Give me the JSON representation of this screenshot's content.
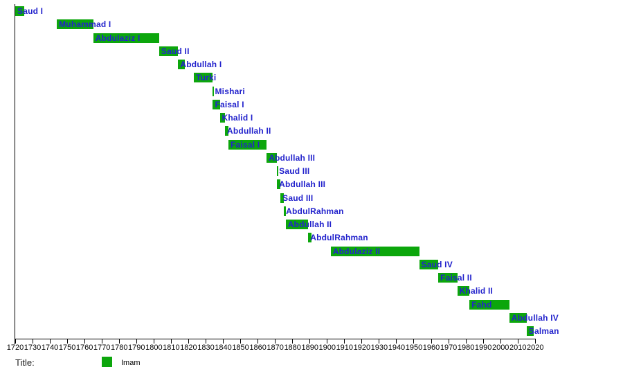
{
  "colors": {
    "bar_green": "#0CA60C",
    "label_blue": "#2222CC",
    "axis_black": "#000000"
  },
  "legend": {
    "title_label": "Title:",
    "items": [
      {
        "name": "Imam",
        "color": "#0CA60C"
      }
    ]
  },
  "chart_data": {
    "type": "bar",
    "subtype": "timeline-gantt",
    "title": "",
    "xlabel": "",
    "ylabel": "",
    "grid": false,
    "legend_position": "bottom-left",
    "x_axis": {
      "min": 1720,
      "max": 2020,
      "tick_interval": 10,
      "tick_labels": [
        1720,
        1730,
        1740,
        1750,
        1760,
        1770,
        1780,
        1790,
        1800,
        1810,
        1820,
        1830,
        1840,
        1850,
        1860,
        1870,
        1880,
        1890,
        1900,
        1910,
        1920,
        1930,
        1940,
        1950,
        1960,
        1970,
        1980,
        1990,
        2000,
        2010,
        2020
      ]
    },
    "series_name": "Imam",
    "series": [
      {
        "name": "Saud I",
        "start": 1720,
        "end": 1725
      },
      {
        "name": "Muhammad I",
        "start": 1744,
        "end": 1765
      },
      {
        "name": "Abdulaziz I",
        "start": 1765,
        "end": 1803
      },
      {
        "name": "Saud II",
        "start": 1803,
        "end": 1814
      },
      {
        "name": "Abdullah I",
        "start": 1814,
        "end": 1818
      },
      {
        "name": "Turki",
        "start": 1823,
        "end": 1834
      },
      {
        "name": "Mishari",
        "start": 1834,
        "end": 1834
      },
      {
        "name": "Faisal I",
        "start": 1834,
        "end": 1838
      },
      {
        "name": "Khalid I",
        "start": 1838,
        "end": 1841
      },
      {
        "name": "Abdullah II",
        "start": 1841,
        "end": 1843
      },
      {
        "name": "Faisal I",
        "start": 1843,
        "end": 1865
      },
      {
        "name": "Abdullah III",
        "start": 1865,
        "end": 1871
      },
      {
        "name": "Saud III",
        "start": 1871,
        "end": 1871
      },
      {
        "name": "Abdullah III",
        "start": 1871,
        "end": 1873
      },
      {
        "name": "Saud III",
        "start": 1873,
        "end": 1875
      },
      {
        "name": "AbdulRahman",
        "start": 1875,
        "end": 1876
      },
      {
        "name": "Abdullah II",
        "start": 1876,
        "end": 1889
      },
      {
        "name": "AbdulRahman",
        "start": 1889,
        "end": 1891
      },
      {
        "name": "Abdulaziz II",
        "start": 1902,
        "end": 1953
      },
      {
        "name": "Saud IV",
        "start": 1953,
        "end": 1964
      },
      {
        "name": "Faisal II",
        "start": 1964,
        "end": 1975
      },
      {
        "name": "Khalid II",
        "start": 1975,
        "end": 1982
      },
      {
        "name": "Fahd",
        "start": 1982,
        "end": 2005
      },
      {
        "name": "Abdullah IV",
        "start": 2005,
        "end": 2015
      },
      {
        "name": "Salman",
        "start": 2015,
        "end": 2019
      }
    ]
  }
}
